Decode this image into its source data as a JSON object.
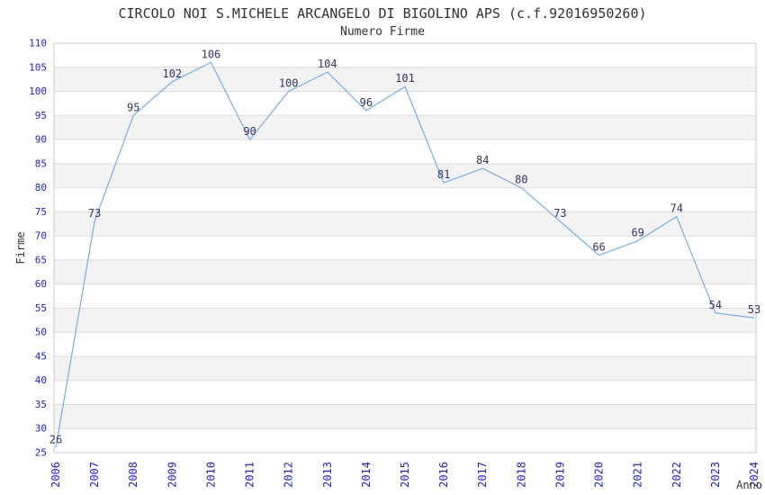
{
  "chart_data": {
    "type": "line",
    "title": "CIRCOLO NOI S.MICHELE ARCANGELO DI BIGOLINO APS (c.f.92016950260)",
    "subtitle": "Numero Firme",
    "xlabel": "Anno",
    "ylabel": "Firme",
    "categories": [
      "2006",
      "2007",
      "2008",
      "2009",
      "2010",
      "2011",
      "2012",
      "2013",
      "2014",
      "2015",
      "2016",
      "2017",
      "2018",
      "2019",
      "2020",
      "2021",
      "2022",
      "2023",
      "2024"
    ],
    "values": [
      26,
      73,
      95,
      102,
      106,
      90,
      100,
      104,
      96,
      101,
      81,
      84,
      80,
      73,
      66,
      69,
      74,
      54,
      53
    ],
    "ylim": [
      25,
      110
    ],
    "yticks": [
      25,
      30,
      35,
      40,
      45,
      50,
      55,
      60,
      65,
      70,
      75,
      80,
      85,
      90,
      95,
      100,
      105,
      110
    ],
    "grid": "horizontal",
    "legend": "none",
    "band_fill": "alternating",
    "data_labels": "all-points",
    "colors": {
      "line": "#79ace8",
      "tick_label": "#2222cc",
      "data_label": "#333366",
      "title": "#333333",
      "axis_label": "#333333",
      "band": "#f3f3f3",
      "grid_line": "#dcdcdc",
      "plot_border": "#c9c9c9",
      "background": "#ffffff"
    }
  }
}
